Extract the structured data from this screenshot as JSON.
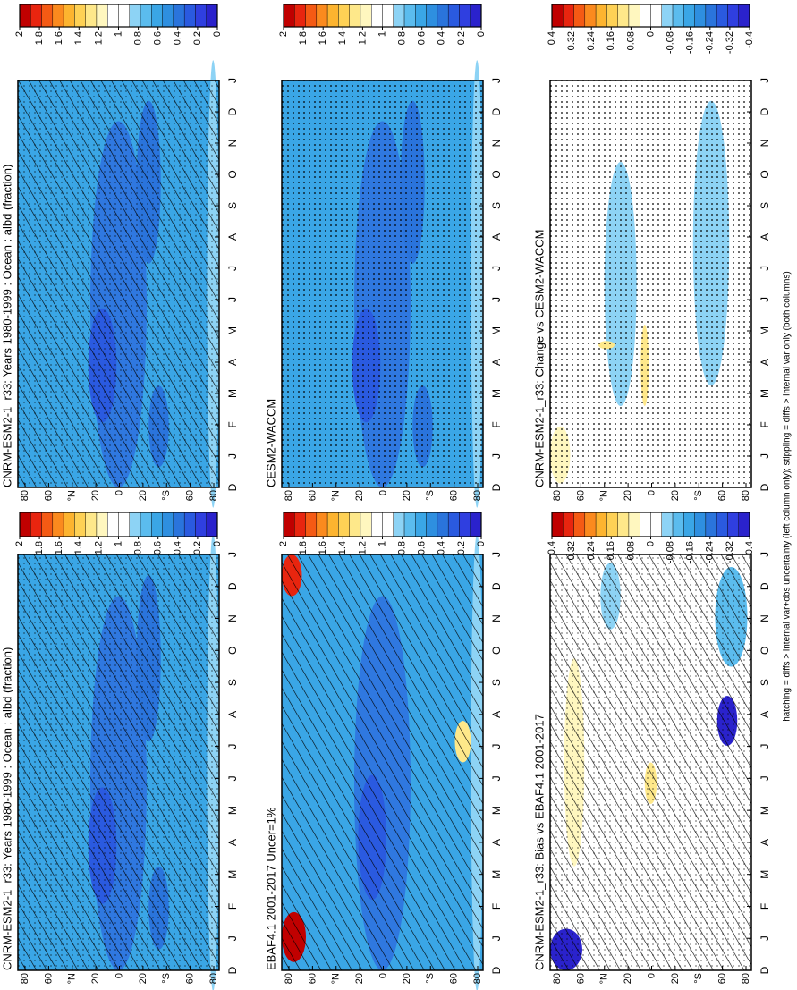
{
  "footer": "hatching = diffs > internal var+obs uncertainty (left column only); stippling = diffs > internal var only (both columns)",
  "panels": [
    {
      "title": "CNRM-ESM2-1_r33: Years 1980-1999 : Ocean : albd (fraction)",
      "background": "#3aa6e6",
      "field": "abs",
      "overlay": "both",
      "colorbar": {
        "lim": [
          2,
          0
        ],
        "ticks": [
          2,
          1.8,
          1.6,
          1.4,
          1.2,
          1,
          0.8,
          0.6,
          0.4,
          0.2,
          0
        ],
        "colors": [
          "#c00000",
          "#e8250f",
          "#f55a14",
          "#fb8a1e",
          "#fdb42f",
          "#fed155",
          "#fee88a",
          "#fff7bf",
          "#ffffff",
          "#ffffff",
          "#8dd3f5",
          "#5bbcee",
          "#3aa6e6",
          "#2e8fe0",
          "#2a74dc",
          "#2a5ae0",
          "#2f3fe0",
          "#2a22cc"
        ]
      },
      "months": [
        "D",
        "J",
        "F",
        "M",
        "A",
        "M",
        "J",
        "J",
        "A",
        "S",
        "O",
        "N",
        "D",
        "J"
      ],
      "lat_labels": [
        "80",
        "60",
        "°N",
        "20",
        "0",
        "20",
        "°S",
        "60",
        "80"
      ]
    },
    {
      "title": "CESM2-WACCM",
      "background": "#3aa6e6",
      "field": "abs",
      "overlay": "stipple",
      "colorbar": {
        "lim": [
          2,
          0
        ],
        "ticks": [
          2,
          1.8,
          1.6,
          1.4,
          1.2,
          1,
          0.8,
          0.6,
          0.4,
          0.2,
          0
        ],
        "colors": [
          "#c00000",
          "#e8250f",
          "#f55a14",
          "#fb8a1e",
          "#fdb42f",
          "#fed155",
          "#fee88a",
          "#fff7bf",
          "#ffffff",
          "#ffffff",
          "#8dd3f5",
          "#5bbcee",
          "#3aa6e6",
          "#2e8fe0",
          "#2a74dc",
          "#2a5ae0",
          "#2f3fe0",
          "#2a22cc"
        ]
      },
      "months": [
        "D",
        "J",
        "F",
        "M",
        "A",
        "M",
        "J",
        "J",
        "A",
        "S",
        "O",
        "N",
        "D",
        "J"
      ],
      "lat_labels": [
        "80",
        "60",
        "°N",
        "20",
        "0",
        "20",
        "°S",
        "60",
        "80"
      ]
    },
    {
      "title": "CNRM-ESM2-1_r33: Change vs CESM2-WACCM",
      "background": "#ffffff",
      "field": "diff",
      "overlay": "stipple",
      "colorbar": {
        "lim": [
          0.4,
          -0.4
        ],
        "ticks": [
          0.4,
          0.32,
          0.24,
          0.16,
          0.08,
          0,
          -0.08,
          -0.16,
          -0.24,
          -0.32,
          -0.4
        ],
        "colors": [
          "#c00000",
          "#e8250f",
          "#f55a14",
          "#fb8a1e",
          "#fdb42f",
          "#fed155",
          "#fee88a",
          "#fff7bf",
          "#ffffff",
          "#ffffff",
          "#8dd3f5",
          "#5bbcee",
          "#3aa6e6",
          "#2e8fe0",
          "#2a74dc",
          "#2a5ae0",
          "#2f3fe0",
          "#2a22cc"
        ]
      },
      "months": [
        "D",
        "J",
        "F",
        "M",
        "A",
        "M",
        "J",
        "J",
        "A",
        "S",
        "O",
        "N",
        "D",
        "J"
      ],
      "lat_labels": [
        "80",
        "60",
        "°N",
        "20",
        "0",
        "20",
        "°S",
        "60",
        "80"
      ]
    },
    {
      "title": "CNRM-ESM2-1_r33: Years 1980-1999 : Ocean : albd (fraction)",
      "background": "#3aa6e6",
      "field": "abs",
      "overlay": "both",
      "colorbar": {
        "lim": [
          2,
          0
        ],
        "ticks": [
          2,
          1.8,
          1.6,
          1.4,
          1.2,
          1,
          0.8,
          0.6,
          0.4,
          0.2,
          0
        ],
        "colors": [
          "#c00000",
          "#e8250f",
          "#f55a14",
          "#fb8a1e",
          "#fdb42f",
          "#fed155",
          "#fee88a",
          "#fff7bf",
          "#ffffff",
          "#ffffff",
          "#8dd3f5",
          "#5bbcee",
          "#3aa6e6",
          "#2e8fe0",
          "#2a74dc",
          "#2a5ae0",
          "#2f3fe0",
          "#2a22cc"
        ]
      },
      "months": [
        "D",
        "J",
        "F",
        "M",
        "A",
        "M",
        "J",
        "J",
        "A",
        "S",
        "O",
        "N",
        "D",
        "J"
      ],
      "lat_labels": [
        "80",
        "60",
        "°N",
        "20",
        "0",
        "20",
        "°S",
        "60",
        "80"
      ]
    },
    {
      "title": "EBAF4.1 2001-2017 Uncer=1%",
      "background": "#3aa6e6",
      "field": "obs",
      "overlay": "hatch",
      "colorbar": {
        "lim": [
          2,
          0
        ],
        "ticks": [
          2,
          1.8,
          1.6,
          1.4,
          1.2,
          1,
          0.8,
          0.6,
          0.4,
          0.2,
          0
        ],
        "colors": [
          "#c00000",
          "#e8250f",
          "#f55a14",
          "#fb8a1e",
          "#fdb42f",
          "#fed155",
          "#fee88a",
          "#fff7bf",
          "#ffffff",
          "#ffffff",
          "#8dd3f5",
          "#5bbcee",
          "#3aa6e6",
          "#2e8fe0",
          "#2a74dc",
          "#2a5ae0",
          "#2f3fe0",
          "#2a22cc"
        ]
      },
      "months": [
        "D",
        "J",
        "F",
        "M",
        "A",
        "M",
        "J",
        "J",
        "A",
        "S",
        "O",
        "N",
        "D",
        "J"
      ],
      "lat_labels": [
        "80",
        "60",
        "°N",
        "20",
        "0",
        "20",
        "°S",
        "60",
        "80"
      ]
    },
    {
      "title": "CNRM-ESM2-1_r33: Bias vs EBAF4.1 2001-2017",
      "background": "#ffffff",
      "field": "bias",
      "overlay": "both",
      "colorbar": {
        "lim": [
          0.4,
          -0.4
        ],
        "ticks": [
          0.4,
          0.32,
          0.24,
          0.16,
          0.08,
          0,
          -0.08,
          -0.16,
          -0.24,
          -0.32,
          -0.4
        ],
        "colors": [
          "#c00000",
          "#e8250f",
          "#f55a14",
          "#fb8a1e",
          "#fdb42f",
          "#fed155",
          "#fee88a",
          "#fff7bf",
          "#ffffff",
          "#ffffff",
          "#8dd3f5",
          "#5bbcee",
          "#3aa6e6",
          "#2e8fe0",
          "#2a74dc",
          "#2a5ae0",
          "#2f3fe0",
          "#2a22cc"
        ]
      },
      "months": [
        "D",
        "J",
        "F",
        "M",
        "A",
        "M",
        "J",
        "J",
        "A",
        "S",
        "O",
        "N",
        "D",
        "J"
      ],
      "lat_labels": [
        "80",
        "60",
        "°N",
        "20",
        "0",
        "20",
        "°S",
        "60",
        "80"
      ]
    }
  ]
}
